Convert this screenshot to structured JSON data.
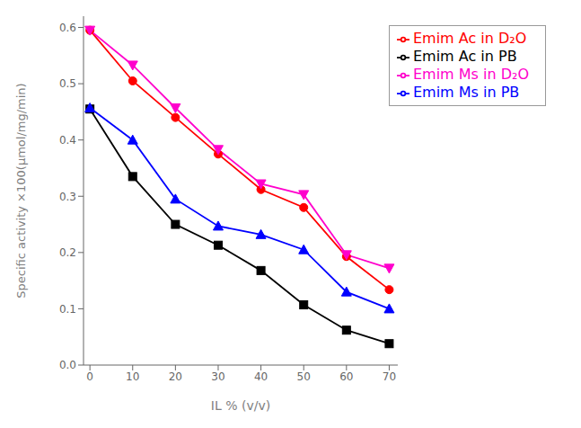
{
  "chart_data": {
    "type": "line",
    "xlabel": "IL % (v/v)",
    "ylabel": "Specific activity ×100(μmol/mg/min)",
    "x": [
      0,
      10,
      20,
      30,
      40,
      50,
      60,
      70
    ],
    "series": [
      {
        "name": "Emim Ac in PB",
        "color": "#000000",
        "marker": "square",
        "line_style": "solid",
        "values": [
          0.455,
          0.335,
          0.25,
          0.213,
          0.168,
          0.107,
          0.062,
          0.038
        ]
      },
      {
        "name": "Emim Ac in D₂O",
        "color": "#ff0000",
        "marker": "circle",
        "line_style": "solid",
        "values": [
          0.595,
          0.505,
          0.44,
          0.375,
          0.312,
          0.28,
          0.193,
          0.134
        ]
      },
      {
        "name": "Emim Ms in PB",
        "color": "#0000ff",
        "marker": "triangle-up",
        "line_style": "solid",
        "values": [
          0.457,
          0.4,
          0.295,
          0.247,
          0.232,
          0.205,
          0.13,
          0.1
        ]
      },
      {
        "name": "Emim Ms in D₂O",
        "color": "#ff00cc",
        "marker": "triangle-down",
        "line_style": "solid",
        "values": [
          0.595,
          0.533,
          0.457,
          0.383,
          0.322,
          0.303,
          0.196,
          0.172
        ]
      }
    ],
    "xlim": [
      -1.5,
      72
    ],
    "ylim": [
      0.0,
      0.62
    ],
    "xticks": [
      0,
      10,
      20,
      30,
      40,
      50,
      60,
      70
    ],
    "yticks": [
      {
        "value": 0.0,
        "label": "0.0"
      },
      0.1,
      0.2,
      0.3,
      0.4,
      0.5,
      0.6
    ],
    "grid": false,
    "legend": "upper right"
  }
}
